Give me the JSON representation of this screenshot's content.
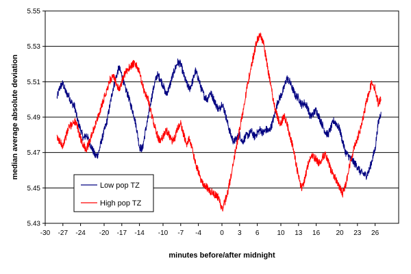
{
  "chart_data": {
    "type": "line",
    "title": "",
    "xlabel": "minutes before/after midnight",
    "ylabel": "median average absolute deviation",
    "xlim": [
      -30,
      30
    ],
    "ylim": [
      5.43,
      5.55
    ],
    "x_ticks": [
      -30,
      -27,
      -24,
      -20,
      -17,
      -14,
      -10,
      -7,
      -4,
      0,
      3,
      6,
      10,
      13,
      16,
      20,
      23,
      26
    ],
    "y_ticks": [
      "5.43",
      "5.45",
      "5.47",
      "5.49",
      "5.51",
      "5.53",
      "5.55"
    ],
    "gridlines": "horizontal",
    "legend_position": "bottom-left",
    "series": [
      {
        "name": "Low pop TZ",
        "color": "#000080",
        "x": [
          -28,
          -27.5,
          -27,
          -26.5,
          -26,
          -25.5,
          -25,
          -24.5,
          -24,
          -23.5,
          -23,
          -22.5,
          -22,
          -21.5,
          -21,
          -20.5,
          -20,
          -19.5,
          -19,
          -18.5,
          -18,
          -17.5,
          -17,
          -16.5,
          -16,
          -15.5,
          -15,
          -14.5,
          -14,
          -13.5,
          -13,
          -12.5,
          -12,
          -11.5,
          -11,
          -10.5,
          -10,
          -9.5,
          -9,
          -8.5,
          -8,
          -7.5,
          -7,
          -6.5,
          -6,
          -5.5,
          -5,
          -4.5,
          -4,
          -3.5,
          -3,
          -2.5,
          -2,
          -1.5,
          -1,
          -0.5,
          0,
          0.5,
          1,
          1.5,
          2,
          2.5,
          3,
          3.5,
          4,
          4.5,
          5,
          5.5,
          6,
          6.5,
          7,
          7.5,
          8,
          8.5,
          9,
          9.5,
          10,
          10.5,
          11,
          11.5,
          12,
          12.5,
          13,
          13.5,
          14,
          14.5,
          15,
          15.5,
          16,
          16.5,
          17,
          17.5,
          18,
          18.5,
          19,
          19.5,
          20,
          20.5,
          21,
          21.5,
          22,
          22.5,
          23,
          23.5,
          24,
          24.5,
          25,
          25.5,
          26,
          26.5,
          27
        ],
        "values": [
          5.501,
          5.507,
          5.509,
          5.504,
          5.502,
          5.498,
          5.496,
          5.488,
          5.483,
          5.478,
          5.48,
          5.476,
          5.472,
          5.468,
          5.469,
          5.476,
          5.482,
          5.488,
          5.497,
          5.506,
          5.512,
          5.518,
          5.514,
          5.507,
          5.503,
          5.497,
          5.492,
          5.484,
          5.473,
          5.472,
          5.482,
          5.49,
          5.5,
          5.508,
          5.514,
          5.512,
          5.508,
          5.503,
          5.506,
          5.512,
          5.517,
          5.521,
          5.52,
          5.514,
          5.509,
          5.506,
          5.51,
          5.516,
          5.512,
          5.506,
          5.502,
          5.5,
          5.504,
          5.501,
          5.497,
          5.494,
          5.498,
          5.493,
          5.486,
          5.48,
          5.476,
          5.478,
          5.48,
          5.476,
          5.479,
          5.48,
          5.482,
          5.479,
          5.481,
          5.483,
          5.481,
          5.483,
          5.482,
          5.486,
          5.492,
          5.499,
          5.502,
          5.506,
          5.512,
          5.51,
          5.506,
          5.502,
          5.501,
          5.497,
          5.498,
          5.496,
          5.49,
          5.492,
          5.494,
          5.49,
          5.486,
          5.482,
          5.48,
          5.484,
          5.488,
          5.486,
          5.483,
          5.476,
          5.47,
          5.468,
          5.466,
          5.464,
          5.462,
          5.459,
          5.458,
          5.457,
          5.46,
          5.466,
          5.472,
          5.486,
          5.493
        ]
      },
      {
        "name": "High pop TZ",
        "color": "#ff0000",
        "x": [
          -28,
          -27.5,
          -27,
          -26.5,
          -26,
          -25.5,
          -25,
          -24.5,
          -24,
          -23.5,
          -23,
          -22.5,
          -22,
          -21.5,
          -21,
          -20.5,
          -20,
          -19.5,
          -19,
          -18.5,
          -18,
          -17.5,
          -17,
          -16.5,
          -16,
          -15.5,
          -15,
          -14.5,
          -14,
          -13.5,
          -13,
          -12.5,
          -12,
          -11.5,
          -11,
          -10.5,
          -10,
          -9.5,
          -9,
          -8.5,
          -8,
          -7.5,
          -7,
          -6.5,
          -6,
          -5.5,
          -5,
          -4.5,
          -4,
          -3.5,
          -3,
          -2.5,
          -2,
          -1.5,
          -1,
          -0.5,
          0,
          0.5,
          1,
          1.5,
          2,
          2.5,
          3,
          3.5,
          4,
          4.5,
          5,
          5.5,
          6,
          6.5,
          7,
          7.5,
          8,
          8.5,
          9,
          9.5,
          10,
          10.5,
          11,
          11.5,
          12,
          12.5,
          13,
          13.5,
          14,
          14.5,
          15,
          15.5,
          16,
          16.5,
          17,
          17.5,
          18,
          18.5,
          19,
          19.5,
          20,
          20.5,
          21,
          21.5,
          22,
          22.5,
          23,
          23.5,
          24,
          24.5,
          25,
          25.5,
          26,
          26.5,
          27
        ],
        "values": [
          5.478,
          5.476,
          5.474,
          5.479,
          5.484,
          5.486,
          5.488,
          5.484,
          5.478,
          5.474,
          5.472,
          5.476,
          5.481,
          5.486,
          5.49,
          5.496,
          5.501,
          5.506,
          5.511,
          5.513,
          5.51,
          5.505,
          5.51,
          5.514,
          5.517,
          5.519,
          5.52,
          5.519,
          5.515,
          5.508,
          5.503,
          5.5,
          5.492,
          5.486,
          5.48,
          5.476,
          5.479,
          5.483,
          5.48,
          5.476,
          5.478,
          5.484,
          5.486,
          5.48,
          5.475,
          5.478,
          5.471,
          5.464,
          5.459,
          5.454,
          5.452,
          5.45,
          5.448,
          5.447,
          5.446,
          5.444,
          5.438,
          5.442,
          5.448,
          5.456,
          5.466,
          5.474,
          5.483,
          5.492,
          5.502,
          5.511,
          5.519,
          5.527,
          5.534,
          5.536,
          5.533,
          5.523,
          5.513,
          5.504,
          5.495,
          5.489,
          5.486,
          5.491,
          5.487,
          5.48,
          5.474,
          5.465,
          5.456,
          5.45,
          5.454,
          5.462,
          5.467,
          5.468,
          5.466,
          5.464,
          5.467,
          5.469,
          5.465,
          5.46,
          5.457,
          5.454,
          5.45,
          5.447,
          5.452,
          5.46,
          5.467,
          5.474,
          5.478,
          5.483,
          5.49,
          5.498,
          5.505,
          5.51,
          5.506,
          5.498,
          5.5
        ]
      }
    ]
  }
}
